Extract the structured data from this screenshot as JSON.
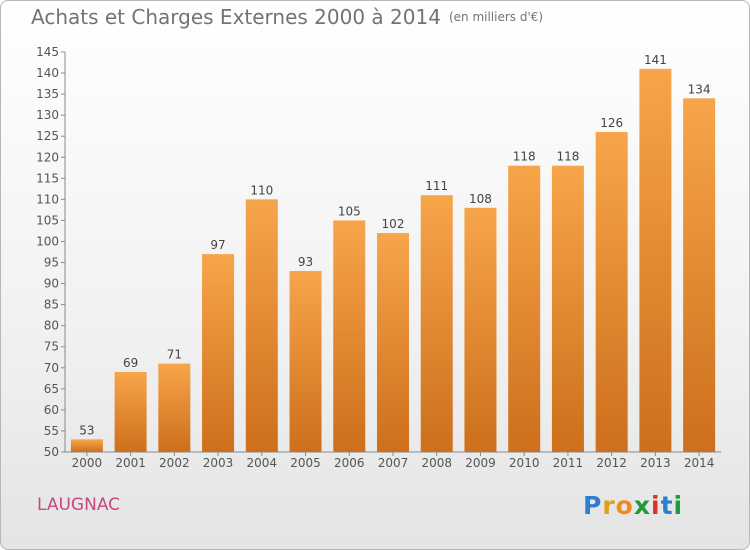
{
  "header": {
    "title": "Achats et Charges Externes 2000 à 2014",
    "unit": "(en milliers d'€)"
  },
  "footer": {
    "place": "LAUGNAC",
    "brand": [
      "P",
      "r",
      "o",
      "x",
      "i",
      "t",
      "i"
    ]
  },
  "colors": {
    "bar_light": "#f7a54a",
    "bar_dark": "#cd6f1b",
    "axis_text": "#555555",
    "brand": [
      "#2e7fd2",
      "#e0a015",
      "#f28a1e",
      "#1f9a3c",
      "#d8322a",
      "#2e7fd2",
      "#1f9a3c"
    ]
  },
  "chart_data": {
    "type": "bar",
    "categories": [
      "2000",
      "2001",
      "2002",
      "2003",
      "2004",
      "2005",
      "2006",
      "2007",
      "2008",
      "2009",
      "2010",
      "2011",
      "2012",
      "2013",
      "2014"
    ],
    "values": [
      53,
      69,
      71,
      97,
      110,
      93,
      105,
      102,
      111,
      108,
      118,
      118,
      126,
      141,
      134
    ],
    "ylim": [
      50,
      145
    ],
    "ytick_step": 5,
    "grid": false,
    "data_labels": true
  }
}
